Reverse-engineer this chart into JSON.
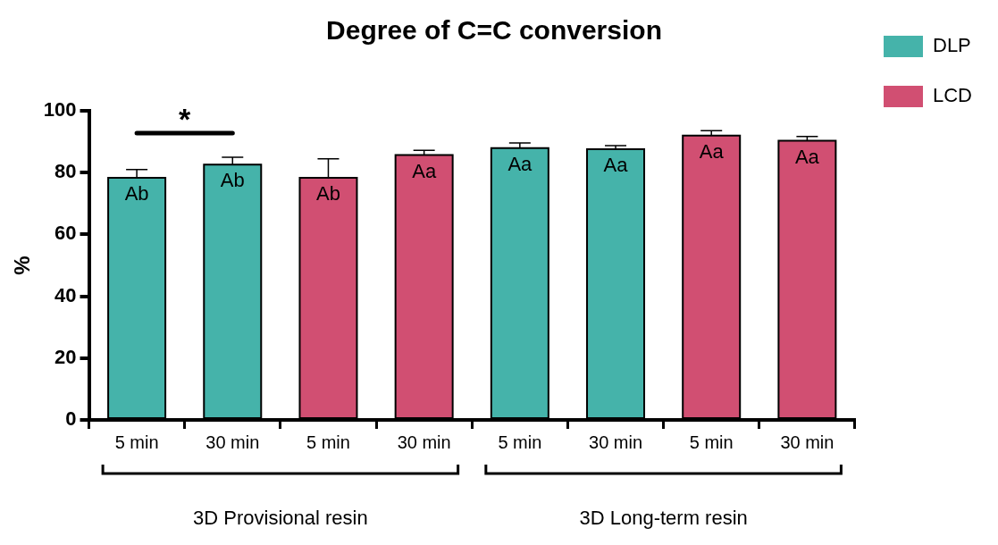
{
  "chart_data": {
    "type": "bar",
    "title": "Degree of C=C conversion",
    "ylabel": "%",
    "categories": [
      "5 min",
      "30 min",
      "5 min",
      "30 min",
      "5 min",
      "30 min",
      "5 min",
      "30 min"
    ],
    "series": [
      {
        "name": "DLP",
        "color": "#45b3aa",
        "values": [
          78.3,
          82.6,
          null,
          null,
          87.9,
          87.6,
          null,
          null
        ],
        "errors": [
          2.7,
          2.4,
          null,
          null,
          1.7,
          1.1,
          null,
          null
        ],
        "value_labels": [
          "Ab",
          "Ab",
          null,
          null,
          "Aa",
          "Aa",
          null,
          null
        ]
      },
      {
        "name": "LCD",
        "color": "#d14f72",
        "values": [
          null,
          null,
          78.3,
          85.7,
          null,
          null,
          92.0,
          90.3
        ],
        "errors": [
          null,
          null,
          6.2,
          1.5,
          null,
          null,
          1.6,
          1.4
        ],
        "value_labels": [
          null,
          null,
          "Ab",
          "Aa",
          null,
          null,
          "Aa",
          "Aa"
        ]
      }
    ],
    "ylim": [
      0,
      100
    ],
    "yticks": [
      0,
      20,
      40,
      60,
      80,
      100
    ],
    "grid": false,
    "legend": "right",
    "annotations": [
      "*",
      "3D Provisional resin",
      "3D Long-term resin"
    ]
  }
}
